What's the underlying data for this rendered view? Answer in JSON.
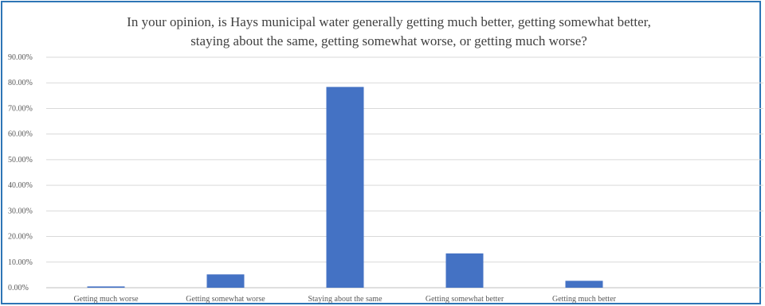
{
  "chart_data": {
    "type": "bar",
    "title_lines": [
      "In your opinion, is Hays municipal water generally getting much better, getting somewhat better,",
      "staying about the same, getting somewhat worse, or getting much worse?"
    ],
    "categories": [
      "Getting much worse",
      "Getting somewhat worse",
      "Staying about the same",
      "Getting somewhat better",
      "Getting much better"
    ],
    "values": [
      0.5,
      5.2,
      78.4,
      13.4,
      2.7
    ],
    "ylim": [
      0,
      90
    ],
    "y_ticks": [
      "0.00%",
      "10.00%",
      "20.00%",
      "30.00%",
      "40.00%",
      "50.00%",
      "60.00%",
      "70.00%",
      "80.00%",
      "90.00%"
    ],
    "grid": true,
    "colors": {
      "bar": "#4472c4",
      "grid": "#d9d9d9",
      "border": "#2e75b6"
    }
  }
}
